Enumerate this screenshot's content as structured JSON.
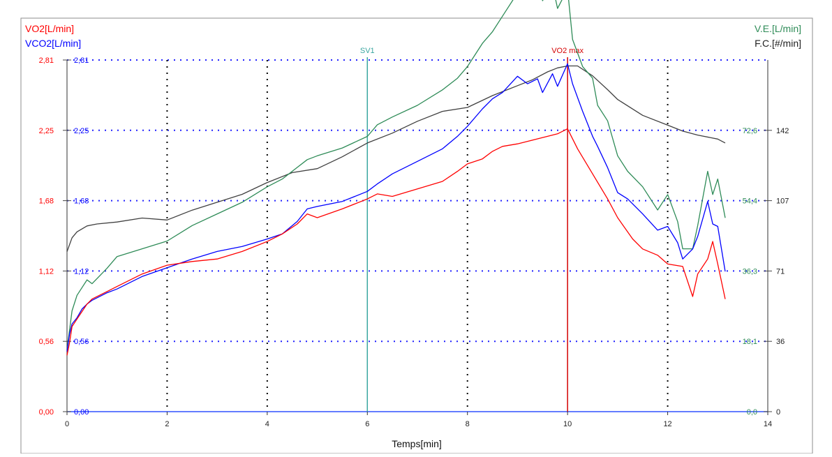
{
  "chart_data": {
    "type": "line",
    "xlabel": "Temps[min]",
    "xlim": [
      0,
      14
    ],
    "x_ticks": [
      "0",
      "2",
      "4",
      "6",
      "8",
      "10",
      "12",
      "14"
    ],
    "axes": {
      "vo2": {
        "label": "VO2[L/min]",
        "color": "#ff0000",
        "ticks": [
          "0,00",
          "0,56",
          "1,12",
          "1,68",
          "2,25",
          "2,81"
        ],
        "ylim": [
          0,
          2.81
        ]
      },
      "vco2": {
        "label": "VCO2[L/min]",
        "color": "#0000ff",
        "ticks": [
          "0,00",
          "0,56",
          "1,12",
          "1,68",
          "2,25",
          "2,81"
        ],
        "ylim": [
          0,
          2.81
        ]
      },
      "ve": {
        "label": "V.E.[L/min]",
        "color": "#2e8b57",
        "ticks": [
          "0,0",
          "18,1",
          "36,3",
          "54,4",
          "72,6"
        ],
        "ylim": [
          0,
          90.7
        ]
      },
      "fc": {
        "label": "F.C.[#/min]",
        "color": "#333333",
        "ticks": [
          "0",
          "36",
          "71",
          "107",
          "142"
        ],
        "ylim": [
          0,
          178
        ]
      }
    },
    "markers": [
      {
        "label": "SV1",
        "x": 6.0,
        "color": "#3aa6a0"
      },
      {
        "label": "VO2 max",
        "x": 10.0,
        "color": "#d40000"
      }
    ],
    "series": [
      {
        "name": "F.C.",
        "color": "#404040",
        "axis": "fc",
        "x": [
          0,
          0.1,
          0.2,
          0.4,
          0.6,
          1.0,
          1.5,
          2.0,
          2.5,
          3.0,
          3.5,
          4.0,
          4.5,
          5.0,
          5.5,
          6.0,
          6.5,
          7.0,
          7.5,
          8.0,
          8.5,
          9.0,
          9.3,
          9.6,
          9.8,
          10.0,
          10.2,
          10.5,
          10.8,
          11.0,
          11.5,
          12.0,
          12.3,
          12.6,
          13.0,
          13.15
        ],
        "y": [
          81,
          88,
          91,
          94,
          95,
          96,
          98,
          97,
          102,
          106,
          110,
          116,
          121,
          123,
          129,
          136,
          141,
          147,
          152,
          154,
          160,
          165,
          168,
          172,
          174,
          175,
          175,
          170,
          163,
          158,
          150,
          145,
          142,
          140,
          138,
          136
        ]
      },
      {
        "name": "V.E.",
        "color": "#2e8b57",
        "axis": "ve",
        "x": [
          0,
          0.05,
          0.1,
          0.2,
          0.3,
          0.4,
          0.5,
          0.8,
          1.0,
          1.5,
          2.0,
          2.5,
          3.0,
          3.5,
          4.0,
          4.3,
          4.6,
          4.8,
          5.0,
          5.5,
          6.0,
          6.2,
          6.5,
          7.0,
          7.5,
          7.8,
          8.0,
          8.3,
          8.5,
          8.7,
          9.0,
          9.2,
          9.4,
          9.5,
          9.7,
          9.8,
          10.0,
          10.1,
          10.3,
          10.5,
          10.6,
          10.8,
          11.0,
          11.2,
          11.5,
          11.8,
          12.0,
          12.2,
          12.3,
          12.5,
          12.6,
          12.8,
          12.9,
          13.0,
          13.15
        ],
        "y": [
          16,
          21,
          26,
          30,
          32,
          34,
          33,
          37,
          40,
          42,
          44,
          48,
          51,
          54,
          58,
          60,
          63,
          65,
          66,
          68,
          71,
          74,
          76,
          79,
          83,
          86,
          89,
          95,
          98,
          102,
          108,
          110,
          113,
          106,
          110,
          104,
          109,
          96,
          89,
          86,
          79,
          75,
          66,
          62,
          58,
          52,
          56,
          49,
          42,
          42,
          48,
          62,
          56,
          60,
          50
        ]
      },
      {
        "name": "VCO2",
        "color": "#0000ff",
        "axis": "vco2",
        "x": [
          0,
          0.05,
          0.1,
          0.2,
          0.3,
          0.4,
          0.5,
          0.8,
          1.0,
          1.5,
          2.0,
          2.5,
          3.0,
          3.5,
          4.0,
          4.3,
          4.6,
          4.8,
          5.0,
          5.5,
          6.0,
          6.2,
          6.5,
          7.0,
          7.5,
          7.8,
          8.0,
          8.3,
          8.5,
          8.7,
          9.0,
          9.2,
          9.4,
          9.5,
          9.7,
          9.8,
          10.0,
          10.1,
          10.3,
          10.5,
          10.6,
          10.8,
          11.0,
          11.2,
          11.5,
          11.8,
          12.0,
          12.2,
          12.3,
          12.5,
          12.6,
          12.8,
          12.9,
          13.0,
          13.15
        ],
        "y": [
          0.48,
          0.62,
          0.7,
          0.75,
          0.82,
          0.86,
          0.89,
          0.95,
          0.98,
          1.08,
          1.15,
          1.22,
          1.28,
          1.32,
          1.38,
          1.42,
          1.52,
          1.62,
          1.64,
          1.68,
          1.76,
          1.82,
          1.9,
          2.0,
          2.1,
          2.2,
          2.28,
          2.42,
          2.5,
          2.55,
          2.68,
          2.62,
          2.66,
          2.55,
          2.7,
          2.6,
          2.78,
          2.62,
          2.4,
          2.2,
          2.12,
          1.95,
          1.75,
          1.7,
          1.58,
          1.45,
          1.48,
          1.35,
          1.22,
          1.3,
          1.4,
          1.68,
          1.5,
          1.48,
          1.12
        ]
      },
      {
        "name": "VO2",
        "color": "#ff0000",
        "axis": "vo2",
        "x": [
          0,
          0.05,
          0.1,
          0.2,
          0.3,
          0.4,
          0.5,
          0.8,
          1.0,
          1.5,
          2.0,
          2.5,
          3.0,
          3.5,
          4.0,
          4.3,
          4.6,
          4.8,
          5.0,
          5.5,
          6.0,
          6.2,
          6.5,
          7.0,
          7.5,
          7.8,
          8.0,
          8.3,
          8.5,
          8.7,
          9.0,
          9.2,
          9.4,
          9.6,
          9.8,
          10.0,
          10.2,
          10.5,
          10.8,
          11.0,
          11.3,
          11.5,
          11.8,
          12.0,
          12.3,
          12.5,
          12.6,
          12.8,
          12.9,
          13.0,
          13.15
        ],
        "y": [
          0.45,
          0.55,
          0.68,
          0.74,
          0.8,
          0.86,
          0.9,
          0.96,
          1.0,
          1.1,
          1.17,
          1.2,
          1.22,
          1.28,
          1.36,
          1.42,
          1.5,
          1.58,
          1.55,
          1.62,
          1.7,
          1.74,
          1.72,
          1.78,
          1.84,
          1.92,
          1.98,
          2.02,
          2.08,
          2.12,
          2.14,
          2.16,
          2.18,
          2.2,
          2.22,
          2.26,
          2.1,
          1.9,
          1.7,
          1.55,
          1.38,
          1.3,
          1.25,
          1.18,
          1.16,
          0.92,
          1.1,
          1.22,
          1.36,
          1.18,
          0.9
        ]
      }
    ]
  }
}
